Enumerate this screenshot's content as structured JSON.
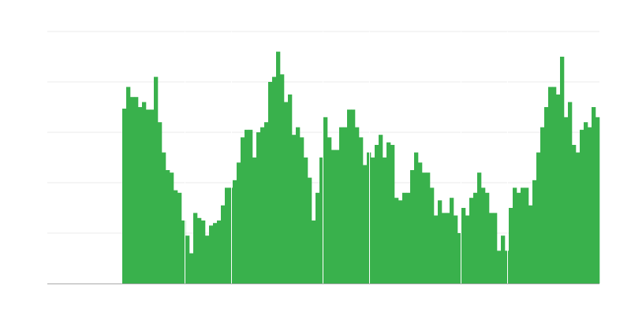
{
  "chart_data": {
    "type": "bar",
    "title": "",
    "xlabel": "",
    "ylabel": "",
    "ylim": [
      0,
      5
    ],
    "grid": true,
    "legend": "none",
    "bar_color": "#39b14c",
    "grid_color": "#ebebeb",
    "axis_color": "#aaaaaa",
    "values": [
      0,
      0,
      0,
      0,
      0,
      0,
      0,
      0,
      0,
      0,
      0,
      0,
      0,
      0,
      0,
      0,
      0,
      0,
      0,
      3.47,
      3.9,
      3.7,
      3.7,
      3.5,
      3.6,
      3.45,
      3.45,
      4.1,
      3.2,
      2.6,
      2.25,
      2.2,
      1.85,
      1.8,
      1.25,
      0.95,
      0.6,
      1.4,
      1.3,
      1.25,
      0.95,
      1.15,
      1.2,
      1.25,
      1.55,
      1.9,
      1.9,
      2.05,
      2.4,
      2.9,
      3.05,
      3.05,
      2.5,
      3.0,
      3.1,
      3.2,
      4.0,
      4.1,
      4.6,
      4.15,
      3.6,
      3.75,
      2.95,
      3.1,
      2.9,
      2.5,
      2.1,
      1.25,
      1.8,
      2.5,
      3.3,
      2.9,
      2.65,
      2.65,
      3.1,
      3.1,
      3.45,
      3.45,
      3.1,
      2.9,
      2.35,
      2.6,
      2.5,
      2.75,
      2.95,
      2.5,
      2.8,
      2.75,
      1.7,
      1.65,
      1.8,
      1.8,
      2.25,
      2.6,
      2.4,
      2.2,
      2.2,
      1.9,
      1.35,
      1.65,
      1.4,
      1.4,
      1.7,
      1.35,
      1.0,
      1.5,
      1.35,
      1.7,
      1.8,
      2.2,
      1.9,
      1.8,
      1.4,
      1.4,
      0.65,
      0.95,
      0.65,
      1.5,
      1.9,
      1.8,
      1.9,
      1.9,
      1.55,
      2.05,
      2.6,
      3.1,
      3.5,
      3.9,
      3.9,
      3.75,
      4.5,
      3.3,
      3.6,
      2.75,
      2.6,
      3.05,
      3.2,
      3.1,
      3.5,
      3.3
    ]
  }
}
